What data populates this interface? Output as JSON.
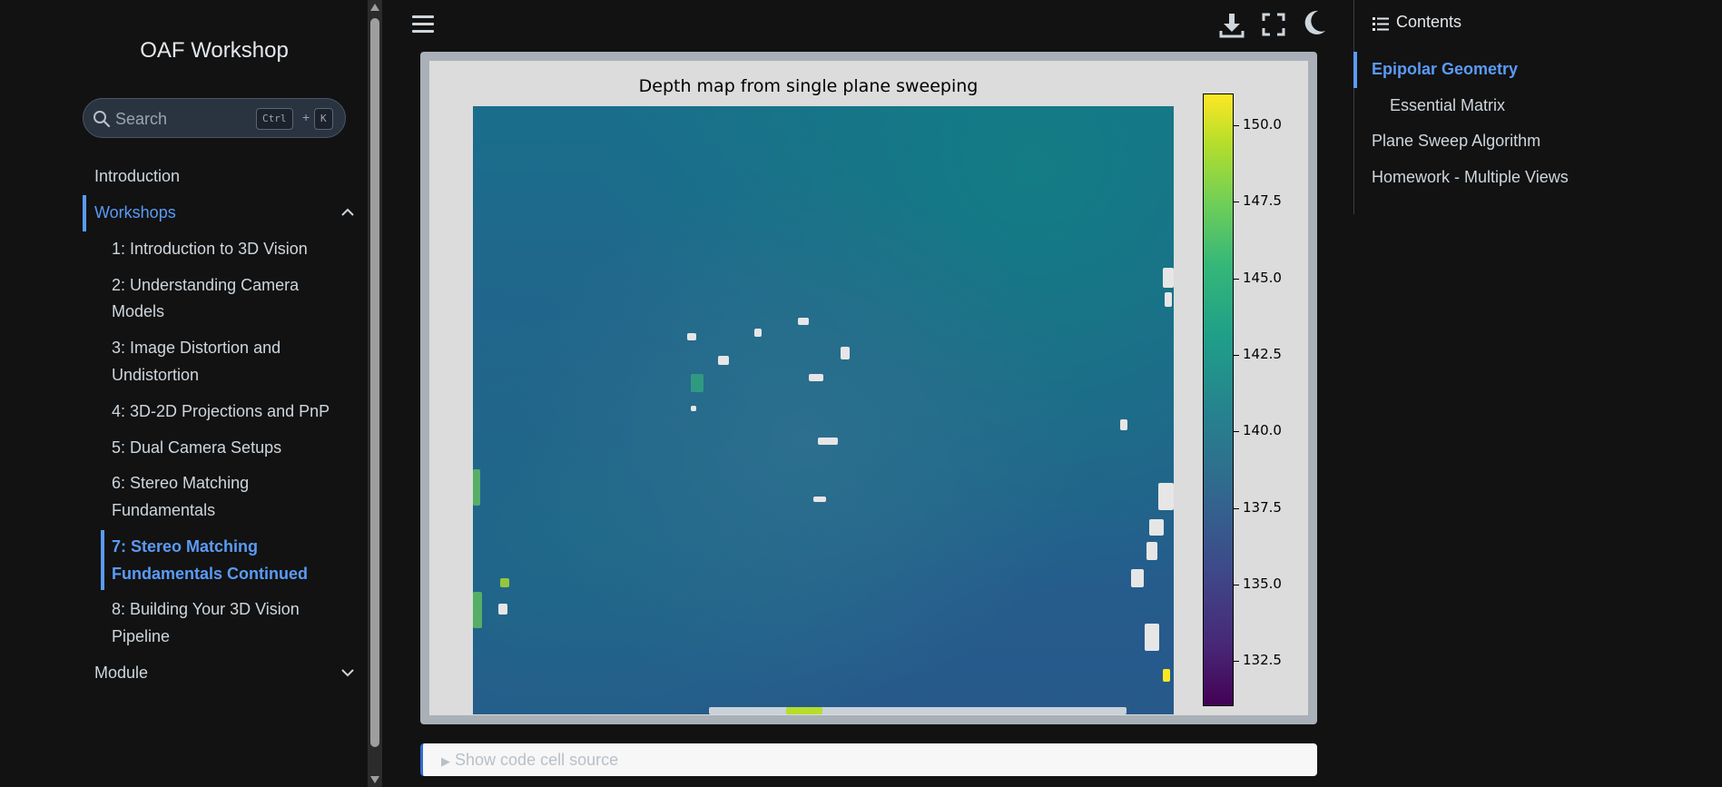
{
  "sidebar": {
    "title": "OAF Workshop",
    "search": {
      "placeholder": "Search",
      "shortcut_ctrl": "Ctrl",
      "shortcut_plus": "+",
      "shortcut_key": "K"
    },
    "nav": {
      "introduction": "Introduction",
      "workshops": "Workshops",
      "module": "Module",
      "workshop_items": [
        "1: Introduction to 3D Vision",
        "2: Understanding Camera",
        "Models",
        "3: Image Distortion and",
        "Undistortion",
        "4: 3D-2D Projections and PnP",
        "5: Dual Camera Setups",
        "6: Stereo Matching",
        "Fundamentals",
        "7: Stereo Matching",
        "Fundamentals Continued",
        "8: Building Your 3D Vision",
        "Pipeline"
      ]
    }
  },
  "header": {
    "menu_icon": "hamburger-menu-icon",
    "download_icon": "download-icon",
    "fullscreen_icon": "fullscreen-icon",
    "theme_icon": "moon-icon"
  },
  "figure": {
    "title": "Depth map from single plane sweeping",
    "colorbar_ticks": [
      "150.0",
      "147.5",
      "145.0",
      "142.5",
      "140.0",
      "137.5",
      "135.0",
      "132.5"
    ],
    "colormap": "viridis",
    "accent": "#5a9bf6"
  },
  "chart_data": {
    "type": "heatmap",
    "title": "Depth map from single plane sweeping",
    "colormap": "viridis",
    "colorbar_range": [
      130.5,
      150.5
    ],
    "colorbar_ticks": [
      132.5,
      135.0,
      137.5,
      140.0,
      142.5,
      145.0,
      147.5,
      150.0
    ]
  },
  "code_cell": {
    "label": "Show code cell source"
  },
  "toc": {
    "heading": "Contents",
    "items": [
      "Epipolar Geometry",
      "Essential Matrix",
      "Plane Sweep Algorithm",
      "Homework - Multiple Views"
    ]
  }
}
